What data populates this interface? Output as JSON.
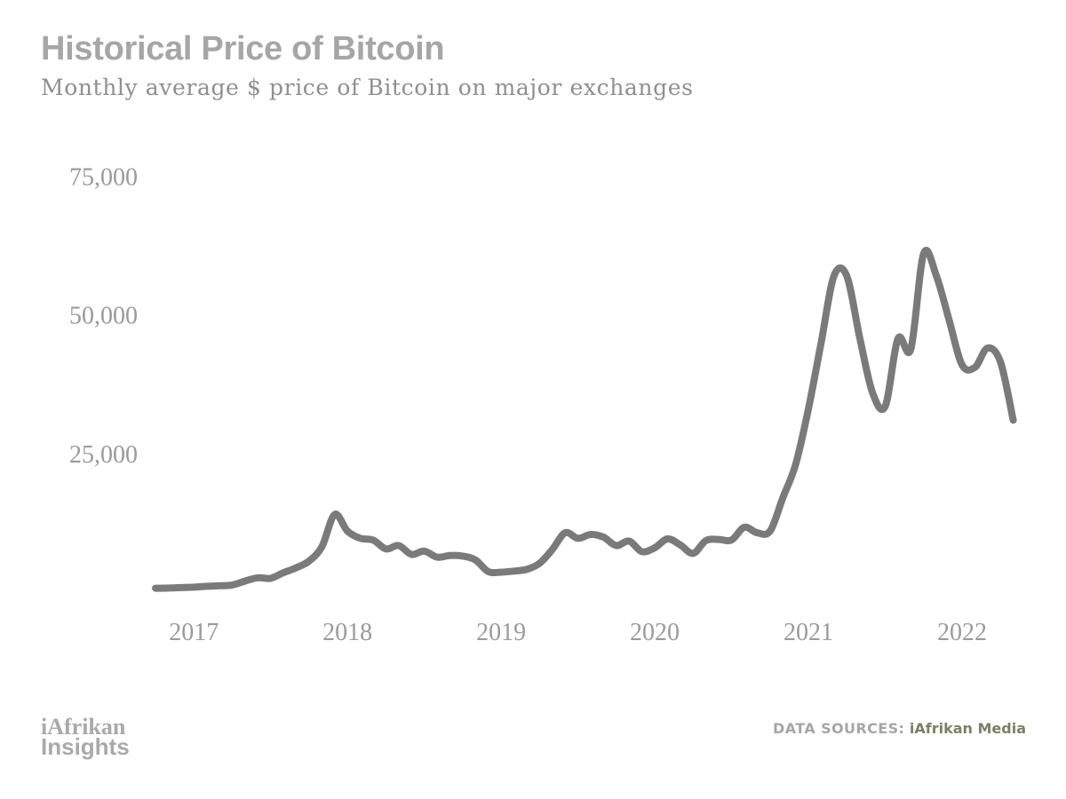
{
  "header": {
    "title": "Historical Price of Bitcoin",
    "subtitle": "Monthly average $ price of Bitcoin on major exchanges"
  },
  "chart_data": {
    "type": "line",
    "title": "Historical Price of Bitcoin",
    "subtitle": "Monthly average $ price of Bitcoin on major exchanges",
    "xlabel": "",
    "ylabel": "",
    "x_ticks": [
      "2017",
      "2018",
      "2019",
      "2020",
      "2021",
      "2022"
    ],
    "y_ticks": [
      25000,
      50000,
      75000
    ],
    "y_tick_labels": [
      "25,000",
      "50,000",
      "75,000"
    ],
    "ylim": [
      0,
      80000
    ],
    "xlim": [
      "2016-10",
      "2022-06"
    ],
    "grid": false,
    "legend": "none",
    "line_color": "#7a7a7a",
    "series": [
      {
        "x": [
          "2016-10",
          "2016-11",
          "2016-12",
          "2017-01",
          "2017-02",
          "2017-03",
          "2017-04",
          "2017-05",
          "2017-06",
          "2017-07",
          "2017-08",
          "2017-09",
          "2017-10",
          "2017-11",
          "2017-12",
          "2018-01",
          "2018-02",
          "2018-03",
          "2018-04",
          "2018-05",
          "2018-06",
          "2018-07",
          "2018-08",
          "2018-09",
          "2018-10",
          "2018-11",
          "2018-12",
          "2019-01",
          "2019-02",
          "2019-03",
          "2019-04",
          "2019-05",
          "2019-06",
          "2019-07",
          "2019-08",
          "2019-09",
          "2019-10",
          "2019-11",
          "2019-12",
          "2020-01",
          "2020-02",
          "2020-03",
          "2020-04",
          "2020-05",
          "2020-06",
          "2020-07",
          "2020-08",
          "2020-09",
          "2020-10",
          "2020-11",
          "2020-12",
          "2021-01",
          "2021-02",
          "2021-03",
          "2021-04",
          "2021-05",
          "2021-06",
          "2021-07",
          "2021-08",
          "2021-09",
          "2021-10",
          "2021-11",
          "2021-12",
          "2022-01",
          "2022-02",
          "2022-03",
          "2022-04",
          "2022-05"
        ],
        "values": [
          700,
          730,
          820,
          900,
          1050,
          1150,
          1300,
          2000,
          2600,
          2500,
          3500,
          4400,
          5600,
          8200,
          14000,
          11000,
          9700,
          9400,
          7800,
          8400,
          6800,
          7400,
          6300,
          6600,
          6500,
          5800,
          3700,
          3600,
          3800,
          4100,
          5200,
          7700,
          10700,
          9700,
          10400,
          9900,
          8400,
          9200,
          7300,
          8000,
          9600,
          8500,
          7000,
          9300,
          9500,
          9400,
          11700,
          10700,
          11000,
          17000,
          23000,
          33000,
          45000,
          57000,
          57000,
          46000,
          36000,
          33500,
          45700,
          43800,
          61000,
          57000,
          49000,
          41000,
          40500,
          44000,
          41500,
          31000
        ]
      }
    ]
  },
  "footer": {
    "brand_line1": "iAfrikan",
    "brand_line2": "Insights",
    "source_label": "DATA SOURCES:",
    "source_value": "iAfrikan Media"
  }
}
